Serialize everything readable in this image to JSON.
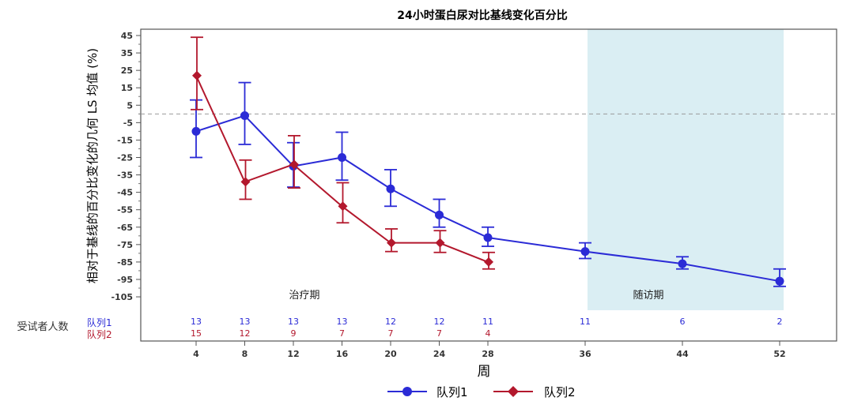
{
  "chart_data": {
    "type": "line",
    "title": "24小时蛋白尿对比基线变化百分比",
    "xlabel": "周",
    "ylabel": "相对于基线的百分比变化的几何 LS 均值 (%)",
    "yticks": [
      45,
      35,
      25,
      15,
      5,
      -5,
      -15,
      -25,
      -35,
      -45,
      -55,
      -65,
      -75,
      -85,
      -95,
      -105
    ],
    "ylim": [
      -105,
      45
    ],
    "xticks": [
      4,
      8,
      12,
      16,
      20,
      24,
      28,
      36,
      44,
      52
    ],
    "reference_line": 0,
    "regions": [
      {
        "label": "治疗期",
        "from": 0,
        "to": 36
      },
      {
        "label": "随访期",
        "from": 36,
        "to": 52,
        "shaded": true,
        "color": "#daeef3"
      }
    ],
    "subjects_label": "受试者人数",
    "series": [
      {
        "name": "队列1",
        "color": "#2b2bd6",
        "marker": "circle",
        "x": [
          4,
          8,
          12,
          16,
          20,
          24,
          28,
          36,
          44,
          52
        ],
        "y": [
          -10,
          -1,
          -30,
          -25,
          -43,
          -58,
          -71,
          -79,
          -86,
          -96
        ],
        "lower": [
          -25,
          -17.5,
          -42,
          -38,
          -53,
          -65,
          -76,
          -83,
          -89,
          -99
        ],
        "upper": [
          8,
          18,
          -16.5,
          -10.5,
          -32,
          -49,
          -65,
          -74,
          -82,
          -89
        ],
        "n": [
          13,
          13,
          13,
          13,
          12,
          12,
          11,
          11,
          6,
          2
        ]
      },
      {
        "name": "队列2",
        "color": "#b3182d",
        "marker": "diamond",
        "x": [
          4,
          8,
          12,
          16,
          20,
          24,
          28
        ],
        "y": [
          22,
          -39,
          -29,
          -53,
          -74,
          -74,
          -85
        ],
        "lower": [
          2.5,
          -49,
          -42.5,
          -62.5,
          -79,
          -79.5,
          -89
        ],
        "upper": [
          44,
          -26.5,
          -12.5,
          -39.5,
          -66,
          -67,
          -79.5
        ],
        "n": [
          15,
          12,
          9,
          7,
          7,
          7,
          4
        ]
      }
    ]
  }
}
